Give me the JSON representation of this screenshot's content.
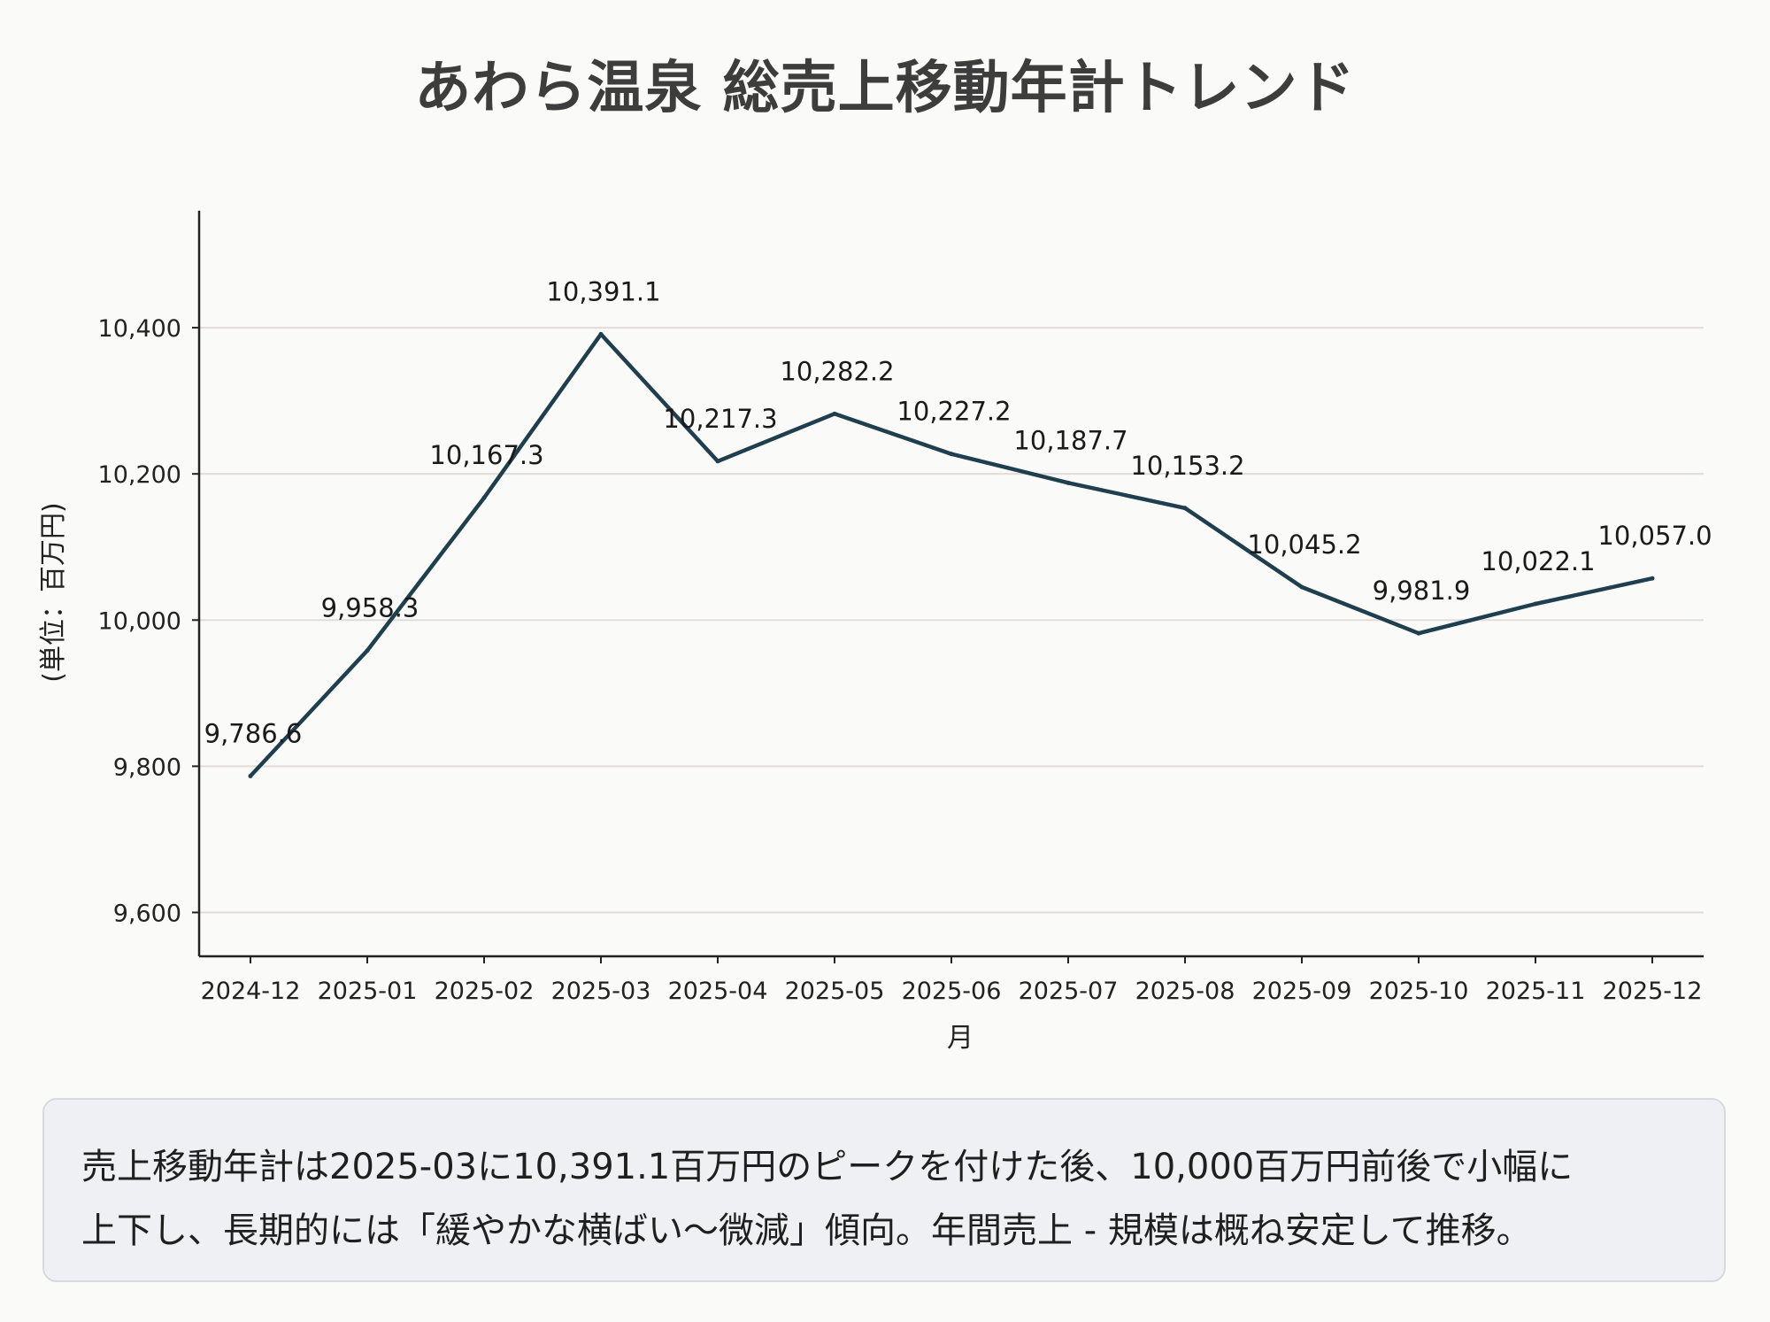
{
  "title": "あわら温泉 総売上移動年計トレンド",
  "chart_data": {
    "type": "line",
    "title": "あわら温泉 総売上移動年計トレンド",
    "xlabel": "月",
    "ylabel": "(単位：百万円)",
    "categories": [
      "2024-12",
      "2025-01",
      "2025-02",
      "2025-03",
      "2025-04",
      "2025-05",
      "2025-06",
      "2025-07",
      "2025-08",
      "2025-09",
      "2025-10",
      "2025-11",
      "2025-12"
    ],
    "values": [
      9786.6,
      9958.3,
      10167.3,
      10391.1,
      10217.3,
      10282.2,
      10227.2,
      10187.7,
      10153.2,
      10045.2,
      9981.9,
      10022.1,
      10057.0
    ],
    "data_labels": [
      "9,786.6",
      "9,958.3",
      "10,167.3",
      "10,391.1",
      "10,217.3",
      "10,282.2",
      "10,227.2",
      "10,187.7",
      "10,153.2",
      "10,045.2",
      "9,981.9",
      "10,022.1",
      "10,057.0"
    ],
    "yticks": [
      9600,
      9800,
      10000,
      10200,
      10400
    ],
    "ytick_labels": [
      "9,600",
      "9,800",
      "10,000",
      "10,200",
      "10,400"
    ],
    "ylim": [
      9540,
      10560
    ],
    "grid": true,
    "line_color": "#1f3f4f",
    "grid_color": "#e2dcd8"
  },
  "summary": {
    "line1": "売上移動年計は2025-03に10,391.1百万円のピークを付けた後、10,000百万円前後で小幅に",
    "line2": "上下し、長期的には「緩やかな横ばい～微減」傾向。年間売上 - 規模は概ね安定して推移。"
  }
}
